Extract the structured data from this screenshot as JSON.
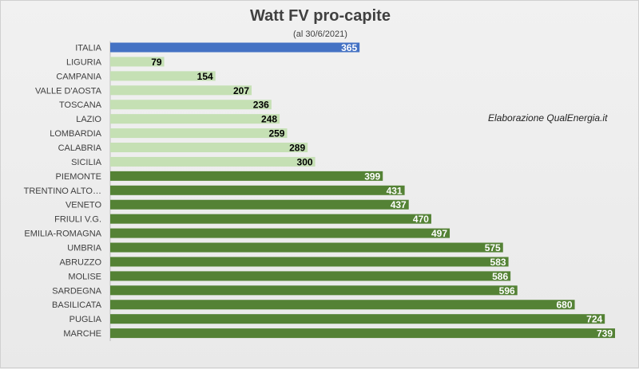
{
  "chart_data": {
    "type": "bar",
    "orientation": "horizontal",
    "title": "Watt FV pro-capite",
    "subtitle": "(al 30/6/2021)",
    "annotation": "Elaborazione QualEnergia.it",
    "categories": [
      "ITALIA",
      "LIGURIA",
      "CAMPANIA",
      "VALLE D'AOSTA",
      "TOSCANA",
      "LAZIO",
      "LOMBARDIA",
      "CALABRIA",
      "SICILIA",
      "PIEMONTE",
      "TRENTINO ALTO…",
      "VENETO",
      "FRIULI V.G.",
      "EMILIA-ROMAGNA",
      "UMBRIA",
      "ABRUZZO",
      "MOLISE",
      "SARDEGNA",
      "BASILICATA",
      "PUGLIA",
      "MARCHE"
    ],
    "values": [
      365,
      79,
      154,
      207,
      236,
      248,
      259,
      289,
      300,
      399,
      431,
      437,
      470,
      497,
      575,
      583,
      586,
      596,
      680,
      724,
      739
    ],
    "xlim": [
      0,
      739
    ],
    "grid": false,
    "colors": {
      "national": "#4472c4",
      "below_national": "#c5e0b4",
      "above_national": "#548235",
      "label_on_dark": "#ffffff",
      "label_on_light": "#000000"
    }
  }
}
